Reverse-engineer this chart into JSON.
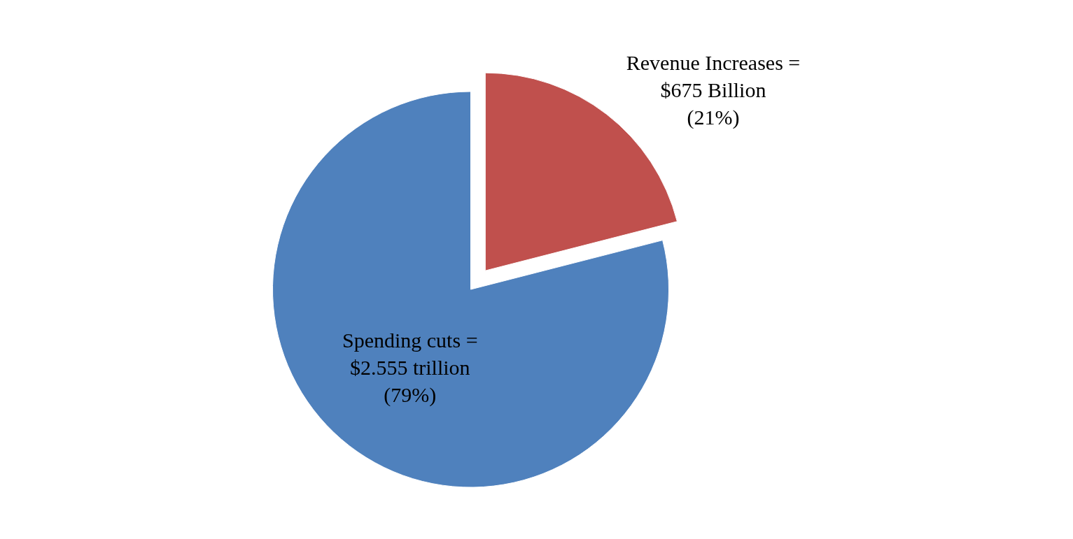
{
  "chart_data": {
    "type": "pie",
    "categories": [
      "Revenue Increases =\n$675 Billion\n(21%)",
      "Spending cuts =\n$2.555 trillion\n(79%)"
    ],
    "values": [
      21,
      79
    ],
    "colors": [
      "#c0504d",
      "#4f81bd"
    ],
    "legend": false
  }
}
